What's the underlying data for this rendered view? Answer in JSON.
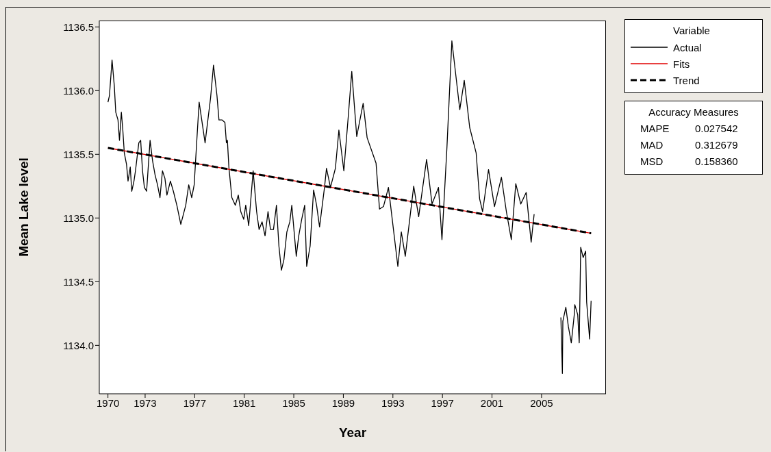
{
  "chart_data": {
    "type": "line",
    "xlabel": "Year",
    "ylabel": "Mean Lake level",
    "legend_title": "Variable",
    "legend": "top right",
    "xlim": [
      1969.3,
      2010.2
    ],
    "xticks": [
      1970,
      1973,
      1977,
      1981,
      1985,
      1989,
      1993,
      1997,
      2001,
      2005
    ],
    "ylim": [
      1133.62,
      1136.55
    ],
    "yticks": [
      {
        "value": 1134,
        "label": "1134.0"
      },
      {
        "value": 1134.5,
        "label": "1134.5"
      },
      {
        "value": 1135,
        "label": "1135.0"
      },
      {
        "value": 1135.5,
        "label": "1135.5"
      },
      {
        "value": 1136,
        "label": "1136.0"
      },
      {
        "value": 1136.5,
        "label": "1136.5"
      }
    ],
    "grid": false,
    "marker": "none",
    "series": [
      {
        "name": "Actual",
        "color": "#000000",
        "line_style": "solid",
        "x": [
          1970.0,
          1970.12,
          1970.33,
          1970.51,
          1970.63,
          1970.81,
          1970.93,
          1971.08,
          1971.2,
          1971.32,
          1971.5,
          1971.62,
          1971.8,
          1971.92,
          1972.1,
          1972.22,
          1972.49,
          1972.64,
          1972.79,
          1972.94,
          1973.12,
          1973.4,
          1973.6,
          1973.8,
          1974.0,
          1974.2,
          1974.4,
          1974.6,
          1974.76,
          1975.04,
          1975.28,
          1975.56,
          1975.88,
          1976.28,
          1976.52,
          1976.76,
          1976.96,
          1977.16,
          1977.36,
          1977.6,
          1977.84,
          1978.04,
          1978.28,
          1978.52,
          1978.8,
          1978.96,
          1979.2,
          1979.44,
          1979.56,
          1979.64,
          1979.76,
          1980.0,
          1980.28,
          1980.52,
          1980.72,
          1980.96,
          1981.12,
          1981.36,
          1981.72,
          1982.0,
          1982.2,
          1982.44,
          1982.68,
          1982.92,
          1983.12,
          1983.36,
          1983.6,
          1983.8,
          1984.0,
          1984.2,
          1984.44,
          1984.68,
          1984.84,
          1985.2,
          1985.4,
          1985.64,
          1985.88,
          1986.04,
          1986.32,
          1986.6,
          1986.84,
          1987.08,
          1987.48,
          1987.64,
          1987.96,
          1988.36,
          1988.64,
          1989.04,
          1989.4,
          1989.68,
          1990.08,
          1990.6,
          1990.92,
          1991.64,
          1991.92,
          1992.24,
          1992.64,
          1993.4,
          1993.68,
          1994.0,
          1994.68,
          1995.08,
          1995.72,
          1996.16,
          1996.68,
          1996.96,
          1997.36,
          1997.76,
          1998.4,
          1998.76,
          1999.2,
          1999.72,
          2000.0,
          2000.24,
          2000.72,
          2001.2,
          2001.76,
          2002.16,
          2002.56,
          2002.92,
          2003.32,
          2003.76,
          2004.16,
          2004.4,
          2005.0,
          2006.56,
          2006.68,
          2006.72,
          2006.96,
          2007.16,
          2007.4,
          2007.64,
          2007.68,
          2007.92,
          2008.04,
          2008.16,
          2008.36,
          2008.56,
          2008.64,
          2008.88,
          2009.0
        ],
        "values": [
          1135.91,
          1135.96,
          1136.24,
          1136.04,
          1135.83,
          1135.77,
          1135.61,
          1135.83,
          1135.69,
          1135.51,
          1135.42,
          1135.29,
          1135.4,
          1135.21,
          1135.29,
          1135.37,
          1135.59,
          1135.61,
          1135.37,
          1135.24,
          1135.21,
          1135.61,
          1135.45,
          1135.34,
          1135.26,
          1135.16,
          1135.37,
          1135.31,
          1135.18,
          1135.29,
          1135.21,
          1135.1,
          1134.95,
          1135.1,
          1135.26,
          1135.16,
          1135.26,
          1135.59,
          1135.91,
          1135.75,
          1135.59,
          1135.75,
          1135.94,
          1136.2,
          1135.96,
          1135.77,
          1135.77,
          1135.75,
          1135.59,
          1135.61,
          1135.4,
          1135.16,
          1135.1,
          1135.18,
          1135.05,
          1134.99,
          1135.1,
          1134.94,
          1135.37,
          1135.05,
          1134.91,
          1134.97,
          1134.86,
          1135.05,
          1134.91,
          1134.91,
          1135.1,
          1134.78,
          1134.59,
          1134.67,
          1134.89,
          1134.97,
          1135.1,
          1134.7,
          1134.86,
          1134.99,
          1135.1,
          1134.62,
          1134.78,
          1135.22,
          1135.1,
          1134.93,
          1135.24,
          1135.39,
          1135.24,
          1135.39,
          1135.69,
          1135.37,
          1135.8,
          1136.15,
          1135.64,
          1135.9,
          1135.63,
          1135.43,
          1135.07,
          1135.09,
          1135.24,
          1134.62,
          1134.89,
          1134.7,
          1135.25,
          1135.01,
          1135.46,
          1135.11,
          1135.24,
          1134.83,
          1135.55,
          1136.39,
          1135.85,
          1136.08,
          1135.71,
          1135.51,
          1135.15,
          1135.05,
          1135.38,
          1135.09,
          1135.32,
          1135.05,
          1134.83,
          1135.27,
          1135.11,
          1135.2,
          1134.81,
          1135.03,
          null,
          1134.22,
          1133.78,
          1134.19,
          1134.3,
          1134.15,
          1134.02,
          1134.24,
          1134.32,
          1134.24,
          1134.02,
          1134.77,
          1134.69,
          1134.74,
          1134.34,
          1134.05,
          1134.35
        ]
      },
      {
        "name": "Fits",
        "color": "#e00000",
        "line_style": "solid",
        "x": [
          1970,
          2009
        ],
        "values": [
          1135.55,
          1134.88
        ]
      },
      {
        "name": "Trend",
        "color": "#000000",
        "line_style": "dashed",
        "x": [
          1970,
          2009
        ],
        "values": [
          1135.55,
          1134.88
        ]
      }
    ],
    "annotations": [
      "Accuracy Measures",
      "MAPE",
      "0.027542",
      "MAD",
      "0.312679",
      "MSD",
      "0.158360"
    ]
  }
}
